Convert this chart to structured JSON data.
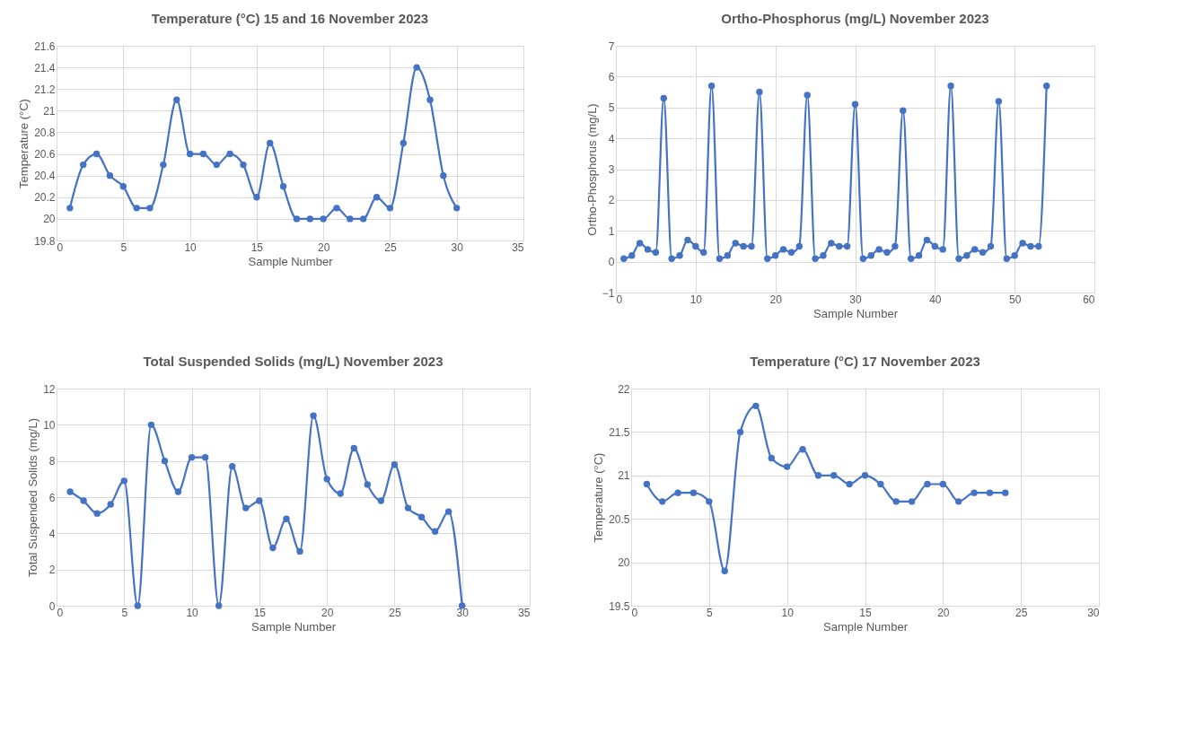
{
  "chart_data": [
    {
      "type": "line",
      "title": "Temperature (°C) 15 and 16 November 2023",
      "xlabel": "Sample Number",
      "ylabel": "Temperature (°C)",
      "x": [
        1,
        2,
        3,
        4,
        5,
        6,
        7,
        8,
        9,
        10,
        11,
        12,
        13,
        14,
        15,
        16,
        17,
        18,
        19,
        20,
        21,
        22,
        23,
        24,
        25,
        26,
        27,
        28,
        29,
        30
      ],
      "series": [
        {
          "color": "#4472c4",
          "values": [
            20.1,
            20.5,
            20.6,
            20.4,
            20.3,
            20.1,
            20.1,
            20.5,
            21.1,
            20.6,
            20.6,
            20.5,
            20.6,
            20.5,
            20.2,
            20.7,
            20.3,
            20.0,
            20.0,
            20.0,
            20.1,
            20.0,
            20.0,
            20.2,
            20.1,
            20.7,
            21.4,
            21.1,
            20.4,
            20.1
          ]
        }
      ],
      "xlim": [
        0,
        35
      ],
      "xticks": [
        0,
        5,
        10,
        15,
        20,
        25,
        30,
        35
      ],
      "ylim": [
        19.8,
        21.6
      ],
      "yticks": [
        19.8,
        20,
        20.2,
        20.4,
        20.6,
        20.8,
        21,
        21.2,
        21.4,
        21.6
      ],
      "grid": true,
      "marker": "circle"
    },
    {
      "type": "line",
      "title": "Ortho-Phosphorus  (mg/L) November 2023",
      "xlabel": "Sample Number",
      "ylabel": "Ortho-Phosphorus  (mg/L)",
      "x": [
        1,
        2,
        3,
        4,
        5,
        6,
        7,
        8,
        9,
        10,
        11,
        12,
        13,
        14,
        15,
        16,
        17,
        18,
        19,
        20,
        21,
        22,
        23,
        24,
        25,
        26,
        27,
        28,
        29,
        30,
        31,
        32,
        33,
        34,
        35,
        36,
        37,
        38,
        39,
        40,
        41,
        42,
        43,
        44,
        45,
        46,
        47,
        48,
        49,
        50,
        51,
        52,
        53,
        54
      ],
      "series": [
        {
          "color": "#4472c4",
          "values": [
            0.1,
            0.2,
            0.6,
            0.4,
            0.3,
            5.3,
            0.1,
            0.2,
            0.7,
            0.5,
            0.3,
            5.7,
            0.1,
            0.2,
            0.6,
            0.5,
            0.5,
            5.5,
            0.1,
            0.2,
            0.4,
            0.3,
            0.5,
            5.4,
            0.1,
            0.2,
            0.6,
            0.5,
            0.5,
            5.1,
            0.1,
            0.2,
            0.4,
            0.3,
            0.5,
            4.9,
            0.1,
            0.2,
            0.7,
            0.5,
            0.4,
            5.7,
            0.1,
            0.2,
            0.4,
            0.3,
            0.5,
            5.2,
            0.1,
            0.2,
            0.6,
            0.5,
            0.5,
            5.7
          ]
        }
      ],
      "xlim": [
        0,
        60
      ],
      "xticks": [
        0,
        10,
        20,
        30,
        40,
        50,
        60
      ],
      "ylim": [
        -1,
        7
      ],
      "yticks": [
        -1,
        0,
        1,
        2,
        3,
        4,
        5,
        6,
        7
      ],
      "grid": true,
      "marker": "circle"
    },
    {
      "type": "line",
      "title": "Total Suspended Solids (mg/L) November 2023",
      "xlabel": "Sample Number",
      "ylabel": "Total Suspended Solids (mg/L)",
      "x": [
        1,
        2,
        3,
        4,
        5,
        6,
        7,
        8,
        9,
        10,
        11,
        12,
        13,
        14,
        15,
        16,
        17,
        18,
        19,
        20,
        21,
        22,
        23,
        24,
        25,
        26,
        27,
        28,
        29,
        30
      ],
      "series": [
        {
          "color": "#4472c4",
          "values": [
            6.3,
            5.8,
            5.1,
            5.6,
            6.9,
            0,
            10.0,
            8.0,
            6.3,
            8.2,
            8.2,
            0,
            7.7,
            5.4,
            5.8,
            3.2,
            4.8,
            3.0,
            10.5,
            7.0,
            6.2,
            8.7,
            6.7,
            5.8,
            7.8,
            5.4,
            4.9,
            4.1,
            5.2,
            0
          ]
        }
      ],
      "xlim": [
        0,
        35
      ],
      "xticks": [
        0,
        5,
        10,
        15,
        20,
        25,
        30,
        35
      ],
      "ylim": [
        0,
        12
      ],
      "yticks": [
        0,
        2,
        4,
        6,
        8,
        10,
        12
      ],
      "grid": true,
      "marker": "circle"
    },
    {
      "type": "line",
      "title": "Temperature (°C) 17 November 2023",
      "xlabel": "Sample Number",
      "ylabel": "Temperature (°C)",
      "x": [
        1,
        2,
        3,
        4,
        5,
        6,
        7,
        8,
        9,
        10,
        11,
        12,
        13,
        14,
        15,
        16,
        17,
        18,
        19,
        20,
        21,
        22,
        23,
        24
      ],
      "series": [
        {
          "color": "#4472c4",
          "values": [
            20.9,
            20.7,
            20.8,
            20.8,
            20.7,
            19.9,
            21.5,
            21.8,
            21.2,
            21.1,
            21.3,
            21.0,
            21.0,
            20.9,
            21.0,
            20.9,
            20.7,
            20.7,
            20.9,
            20.9,
            20.7,
            20.8,
            20.8,
            20.8
          ]
        }
      ],
      "xlim": [
        0,
        30
      ],
      "xticks": [
        0,
        5,
        10,
        15,
        20,
        25,
        30
      ],
      "ylim": [
        19.5,
        22
      ],
      "yticks": [
        19.5,
        20,
        20.5,
        21,
        21.5,
        22
      ],
      "grid": true,
      "marker": "circle"
    }
  ]
}
